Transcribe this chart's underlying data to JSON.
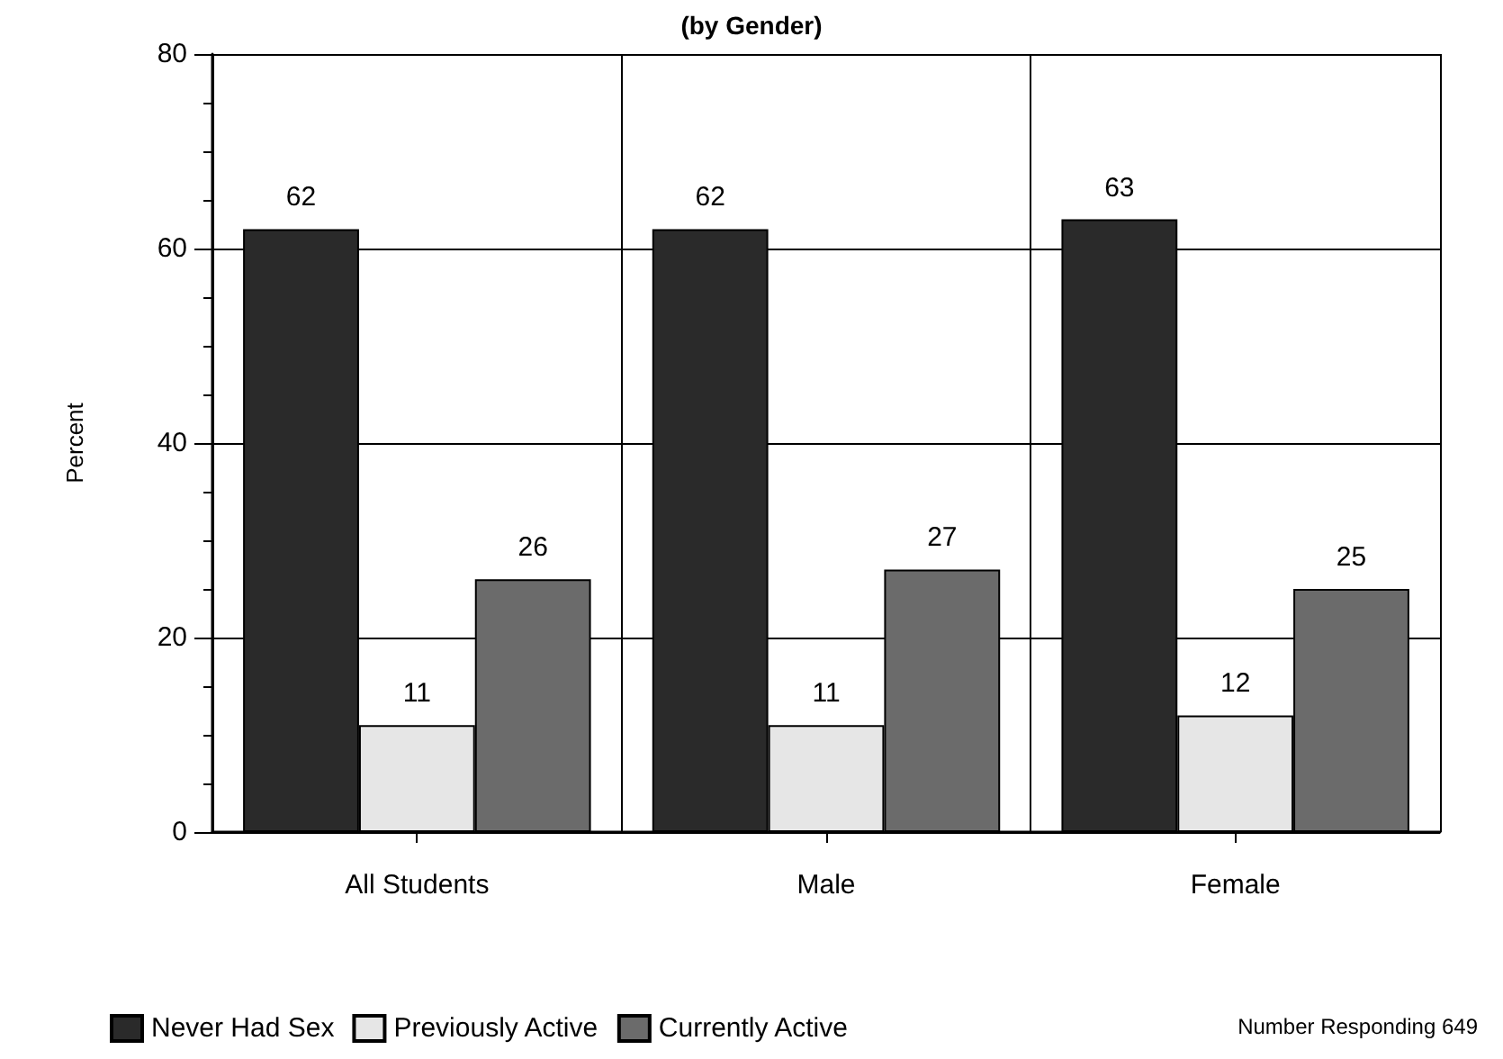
{
  "chart_data": {
    "type": "bar",
    "title": "(by Gender)",
    "ylabel": "Percent",
    "categories": [
      "All Students",
      "Male",
      "Female"
    ],
    "series": [
      {
        "name": "Never Had Sex",
        "color": "#2a2a2a",
        "values": [
          62,
          62,
          63
        ]
      },
      {
        "name": "Previously Active",
        "color": "#e6e6e6",
        "values": [
          11,
          11,
          12
        ]
      },
      {
        "name": "Currently Active",
        "color": "#6b6b6b",
        "values": [
          26,
          27,
          25
        ]
      }
    ],
    "ylim": [
      0,
      80
    ],
    "yticks": [
      0,
      20,
      40,
      60,
      80
    ],
    "grid": true,
    "legend": "bottom left",
    "data_labels": true,
    "annotations": [
      "Number Responding 649"
    ]
  }
}
